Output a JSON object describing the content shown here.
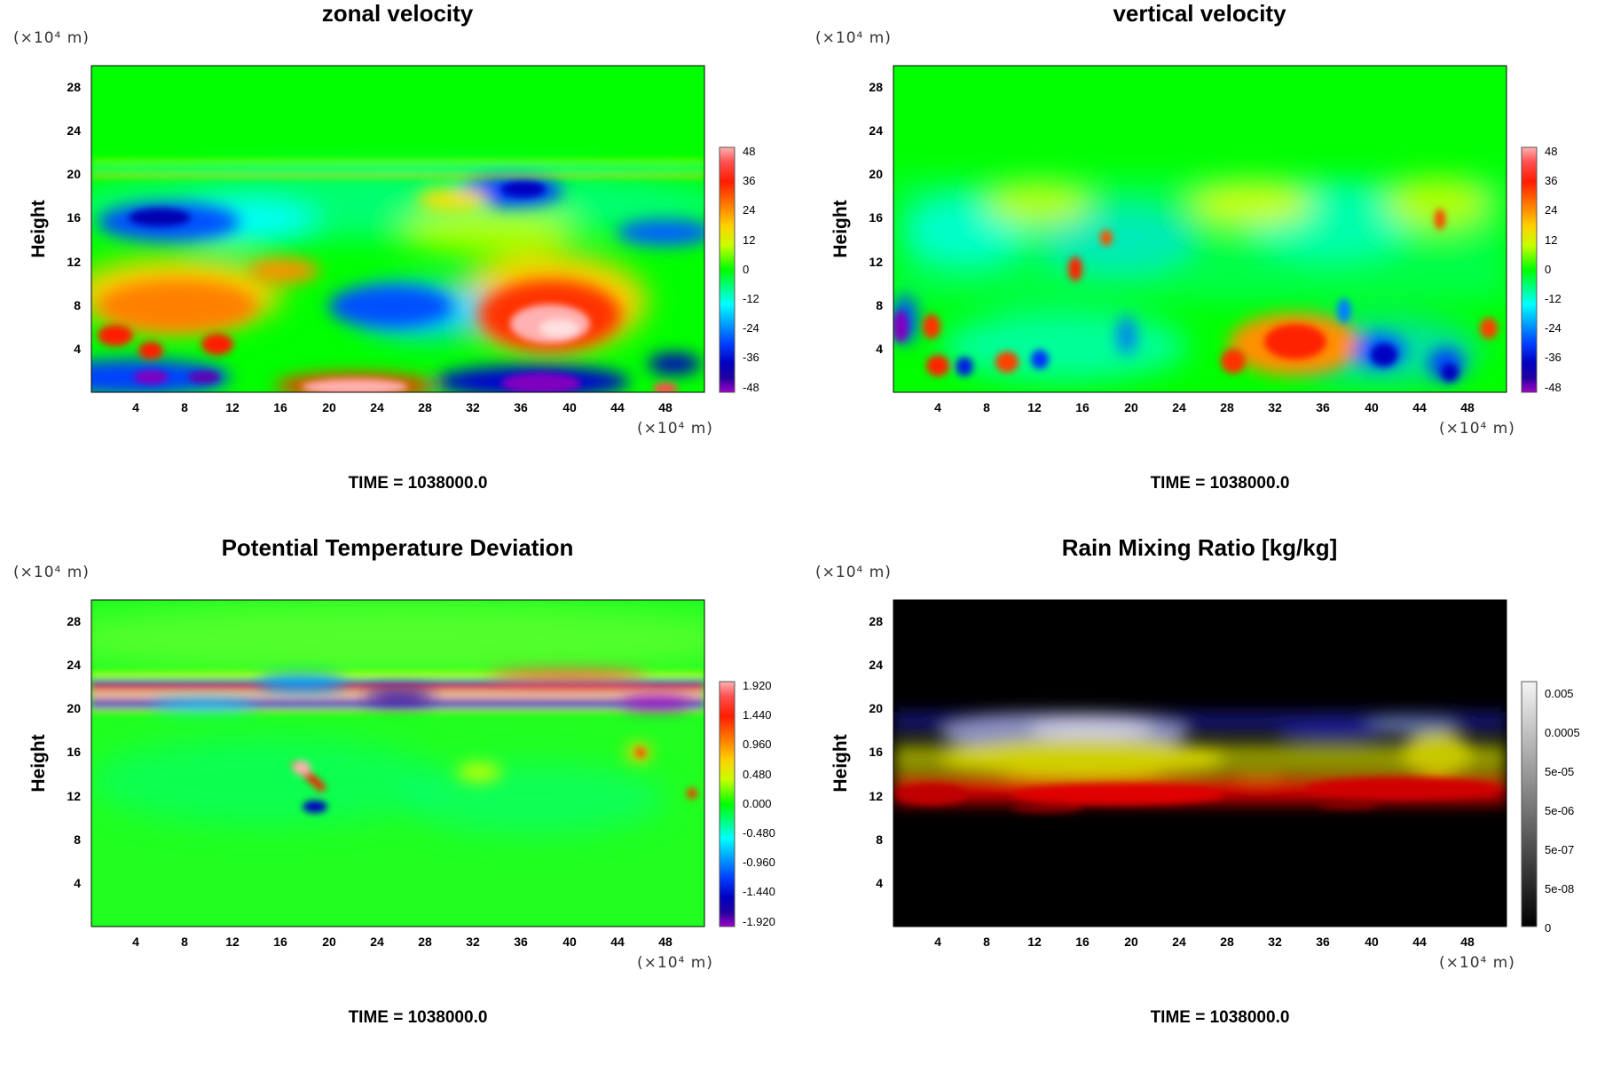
{
  "panels": [
    {
      "title": "zonal velocity",
      "y_unit": "(×10⁴ m)",
      "x_unit": "(×10⁴ m)",
      "ylabel": "Height",
      "time_label": "TIME = 1038000.0",
      "x_ticks": [
        "4",
        "8",
        "12",
        "16",
        "20",
        "24",
        "28",
        "32",
        "36",
        "40",
        "44",
        "48"
      ],
      "y_ticks": [
        "4",
        "8",
        "12",
        "16",
        "20",
        "24",
        "28"
      ],
      "colorbar_labels": [
        "48",
        "36",
        "24",
        "12",
        "0",
        "-12",
        "-24",
        "-36",
        "-48"
      ],
      "colormap": "rainbow",
      "field": "zonal"
    },
    {
      "title": "vertical velocity",
      "y_unit": "(×10⁴ m)",
      "x_unit": "(×10⁴ m)",
      "ylabel": "Height",
      "time_label": "TIME = 1038000.0",
      "x_ticks": [
        "4",
        "8",
        "12",
        "16",
        "20",
        "24",
        "28",
        "32",
        "36",
        "40",
        "44",
        "48"
      ],
      "y_ticks": [
        "4",
        "8",
        "12",
        "16",
        "20",
        "24",
        "28"
      ],
      "colorbar_labels": [
        "48",
        "36",
        "24",
        "12",
        "0",
        "-12",
        "-24",
        "-36",
        "-48"
      ],
      "colormap": "rainbow",
      "field": "vertical"
    },
    {
      "title": "Potential Temperature Deviation",
      "y_unit": "(×10⁴ m)",
      "x_unit": "(×10⁴ m)",
      "ylabel": "Height",
      "time_label": "TIME = 1038000.0",
      "x_ticks": [
        "4",
        "8",
        "12",
        "16",
        "20",
        "24",
        "28",
        "32",
        "36",
        "40",
        "44",
        "48"
      ],
      "y_ticks": [
        "4",
        "8",
        "12",
        "16",
        "20",
        "24",
        "28"
      ],
      "colorbar_labels": [
        "1.920",
        "1.440",
        "0.960",
        "0.480",
        "0.000",
        "-0.480",
        "-0.960",
        "-1.440",
        "-1.920"
      ],
      "colormap": "rainbow",
      "field": "theta"
    },
    {
      "title": "Rain Mixing Ratio [kg/kg]",
      "y_unit": "(×10⁴ m)",
      "x_unit": "(×10⁴ m)",
      "ylabel": "Height",
      "time_label": "TIME = 1038000.0",
      "x_ticks": [
        "4",
        "8",
        "12",
        "16",
        "20",
        "24",
        "28",
        "32",
        "36",
        "40",
        "44",
        "48"
      ],
      "y_ticks": [
        "4",
        "8",
        "12",
        "16",
        "20",
        "24",
        "28"
      ],
      "colorbar_labels": [
        "0.005",
        "0.0005",
        "5e-05",
        "5e-06",
        "5e-07",
        "5e-08",
        "0"
      ],
      "colormap": "grayscale",
      "field": "rain"
    }
  ],
  "chart_data": [
    {
      "type": "heatmap",
      "title": "zonal velocity",
      "ylabel": "Height",
      "x_ticks": [
        4,
        8,
        12,
        16,
        20,
        24,
        28,
        32,
        36,
        40,
        44,
        48
      ],
      "y_ticks": [
        4,
        8,
        12,
        16,
        20,
        24,
        28
      ],
      "xlim": [
        0,
        51.2
      ],
      "ylim": [
        0,
        30
      ],
      "colorbar": {
        "ticks": [
          48,
          36,
          24,
          12,
          0,
          -12,
          -24,
          -36,
          -48
        ],
        "range": [
          -48,
          48
        ]
      },
      "features": [
        {
          "kind": "positive maximum",
          "x": 38,
          "y": 5.5,
          "value": 48
        },
        {
          "kind": "positive maximum",
          "x": 24,
          "y": 0.5,
          "value": 45
        },
        {
          "kind": "positive band",
          "x": 8,
          "y": 7,
          "value": 30
        },
        {
          "kind": "negative minimum",
          "x": 40,
          "y": 1.2,
          "value": -48
        },
        {
          "kind": "negative minimum",
          "x": 6,
          "y": 16,
          "value": -40
        },
        {
          "kind": "negative minimum",
          "x": 37,
          "y": 18.5,
          "value": -38
        },
        {
          "kind": "quiescent layer",
          "y_from": 21,
          "y_to": 30,
          "value": 0
        }
      ]
    },
    {
      "type": "heatmap",
      "title": "vertical velocity",
      "ylabel": "Height",
      "x_ticks": [
        4,
        8,
        12,
        16,
        20,
        24,
        28,
        32,
        36,
        40,
        44,
        48
      ],
      "y_ticks": [
        4,
        8,
        12,
        16,
        20,
        24,
        28
      ],
      "xlim": [
        0,
        51.2
      ],
      "ylim": [
        0,
        30
      ],
      "colorbar": {
        "ticks": [
          48,
          36,
          24,
          12,
          0,
          -12,
          -24,
          -36,
          -48
        ],
        "range": [
          -48,
          48
        ]
      },
      "features": [
        {
          "kind": "updraft",
          "x": 33.5,
          "y": 4.5,
          "value": 30
        },
        {
          "kind": "updraft",
          "x": 3.5,
          "y": 5.8,
          "value": 36
        },
        {
          "kind": "downdraft",
          "x": 0.8,
          "y": 6,
          "value": -48
        },
        {
          "kind": "downdraft",
          "x": 40,
          "y": 3.5,
          "value": -30
        },
        {
          "kind": "quiescent layer",
          "y_from": 20,
          "y_to": 30,
          "value": 0
        }
      ]
    },
    {
      "type": "heatmap",
      "title": "Potential Temperature Deviation",
      "ylabel": "Height",
      "x_ticks": [
        4,
        8,
        12,
        16,
        20,
        24,
        28,
        32,
        36,
        40,
        44,
        48
      ],
      "y_ticks": [
        4,
        8,
        12,
        16,
        20,
        24,
        28
      ],
      "xlim": [
        0,
        51.2
      ],
      "ylim": [
        0,
        30
      ],
      "colorbar": {
        "ticks": [
          1.92,
          1.44,
          0.96,
          0.48,
          0.0,
          -0.48,
          -0.96,
          -1.44,
          -1.92
        ],
        "range": [
          -1.92,
          1.92
        ]
      },
      "features": [
        {
          "kind": "strong alternating layer",
          "y_from": 19.5,
          "y_to": 23.5,
          "min": -1.92,
          "max": 1.92
        },
        {
          "kind": "warm anomaly",
          "x": 19,
          "y": 13,
          "value": 1.6
        },
        {
          "kind": "cold anomaly",
          "x": 19.5,
          "y": 10.5,
          "value": -1.5
        },
        {
          "kind": "background",
          "value": 0.0
        }
      ]
    },
    {
      "type": "heatmap",
      "title": "Rain Mixing Ratio [kg/kg]",
      "ylabel": "Height",
      "x_ticks": [
        4,
        8,
        12,
        16,
        20,
        24,
        28,
        32,
        36,
        40,
        44,
        48
      ],
      "y_ticks": [
        4,
        8,
        12,
        16,
        20,
        24,
        28
      ],
      "xlim": [
        0,
        51.2
      ],
      "ylim": [
        0,
        30
      ],
      "colorbar": {
        "ticks": [
          "0.005",
          "0.0005",
          "5e-05",
          "5e-06",
          "5e-07",
          "5e-08",
          "0"
        ],
        "scale": "log"
      },
      "features": [
        {
          "kind": "rain layer (high)",
          "y_from": 10.5,
          "y_to": 14,
          "color": "red"
        },
        {
          "kind": "rain layer (mid)",
          "y_from": 14,
          "y_to": 17.5,
          "color": "yellow"
        },
        {
          "kind": "rain layer (top)",
          "y_from": 17.5,
          "y_to": 20,
          "color": "blue"
        },
        {
          "kind": "dry region",
          "y_from": 0,
          "y_to": 10.5,
          "value": 0
        },
        {
          "kind": "dry region",
          "y_from": 20,
          "y_to": 30,
          "value": 0
        }
      ]
    }
  ]
}
